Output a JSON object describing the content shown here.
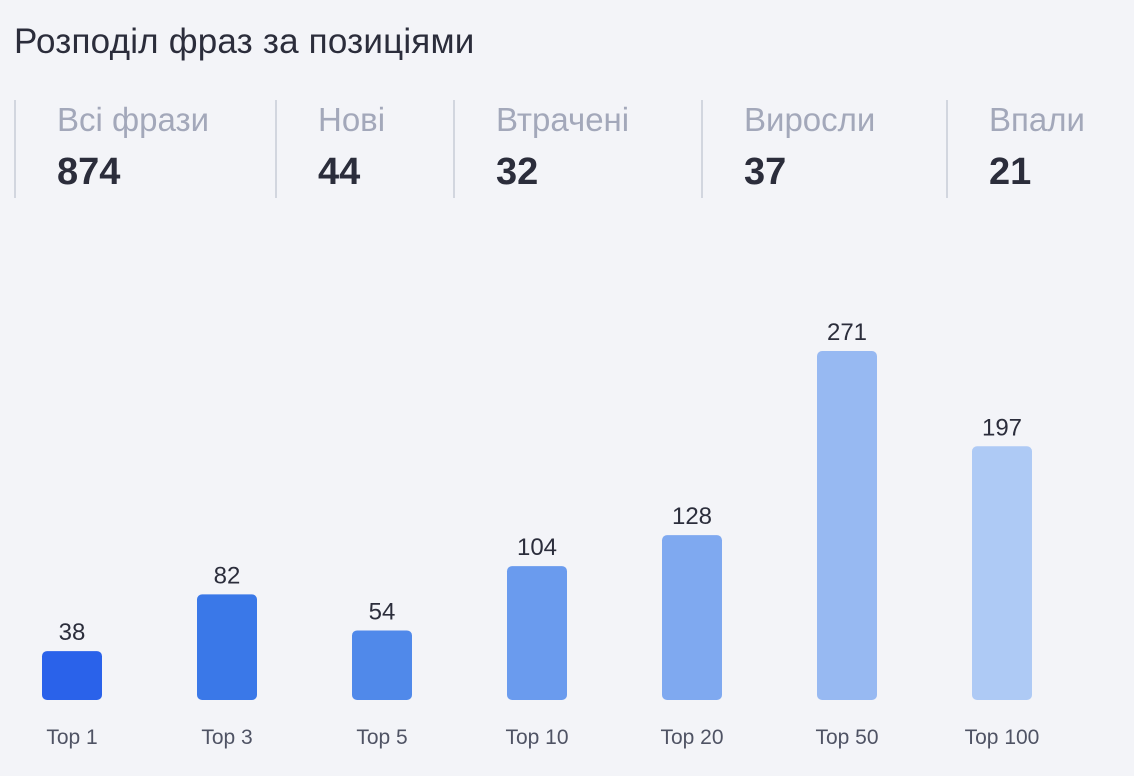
{
  "widget": {
    "title": "Розподіл фраз за позиціями"
  },
  "stats": [
    {
      "label": "Всі фрази",
      "value": "874"
    },
    {
      "label": "Нові",
      "value": "44"
    },
    {
      "label": "Втрачені",
      "value": "32"
    },
    {
      "label": "Виросли",
      "value": "37"
    },
    {
      "label": "Впали",
      "value": "21"
    }
  ],
  "chart_data": {
    "type": "bar",
    "categories": [
      "Top 1",
      "Top 3",
      "Top 5",
      "Top 10",
      "Top 20",
      "Top 50",
      "Top 100"
    ],
    "values": [
      38,
      82,
      54,
      104,
      128,
      271,
      197
    ],
    "title": "",
    "xlabel": "",
    "ylabel": "",
    "ylim": [
      0,
      271
    ],
    "grid": false,
    "data_labels": true,
    "bar_colors": [
      "#2a62ea",
      "#3a78e8",
      "#5089ea",
      "#6a9bee",
      "#7fa9f0",
      "#97b9f2",
      "#aecaf5"
    ]
  }
}
